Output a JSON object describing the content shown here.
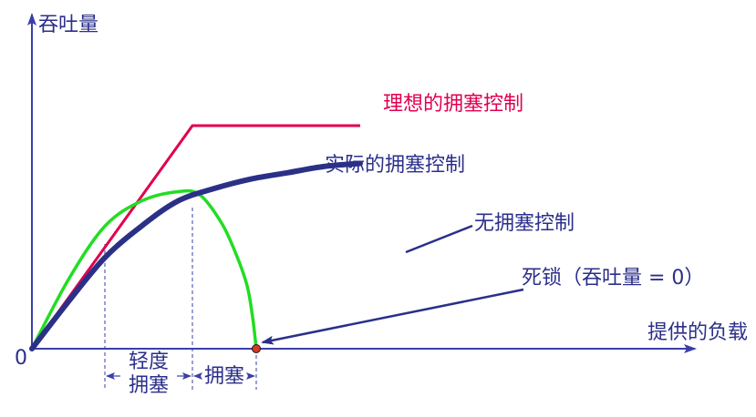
{
  "chart_data": {
    "type": "line",
    "ylabel": "吞吐量",
    "xlabel": "提供的负载",
    "origin_label": "0",
    "x_range": [
      0,
      10
    ],
    "y_range": [
      0,
      10
    ],
    "grid": false,
    "series": [
      {
        "name": "理想的拥塞控制",
        "color": "#e0004f",
        "x": [
          0,
          4.4,
          9.0
        ],
        "y": [
          0,
          7.1,
          7.1
        ]
      },
      {
        "name": "实际的拥塞控制",
        "color": "#2b3087",
        "x": [
          0,
          1.0,
          2.0,
          3.0,
          4.0,
          5.0,
          6.0,
          7.0,
          8.0,
          9.0
        ],
        "y": [
          0,
          1.5,
          2.9,
          3.9,
          4.7,
          5.1,
          5.4,
          5.6,
          5.8,
          5.9
        ]
      },
      {
        "name": "无拥塞控制",
        "color": "#22dd22",
        "x": [
          0,
          1.0,
          2.0,
          3.0,
          4.0,
          4.6,
          5.2,
          5.6,
          5.9,
          6.05,
          6.15
        ],
        "y": [
          0,
          2.2,
          3.9,
          4.7,
          5.0,
          4.9,
          4.0,
          3.0,
          2.0,
          1.0,
          0
        ]
      }
    ],
    "regions": [
      {
        "label_lines": [
          "轻度",
          "拥塞"
        ],
        "x_start": 2.0,
        "x_end": 4.4
      },
      {
        "label_lines": [
          "拥塞"
        ],
        "x_start": 4.4,
        "x_end": 6.15
      }
    ],
    "annotations": {
      "deadlock": {
        "text": "死锁（吞吐量 = 0）",
        "x": 6.15,
        "y": 0
      }
    }
  },
  "colors": {
    "axis": "#3a3fa8",
    "label": "#2b2f8a",
    "dashed": "#3a3fa8",
    "deadlock_dot": "#d23a2a"
  }
}
